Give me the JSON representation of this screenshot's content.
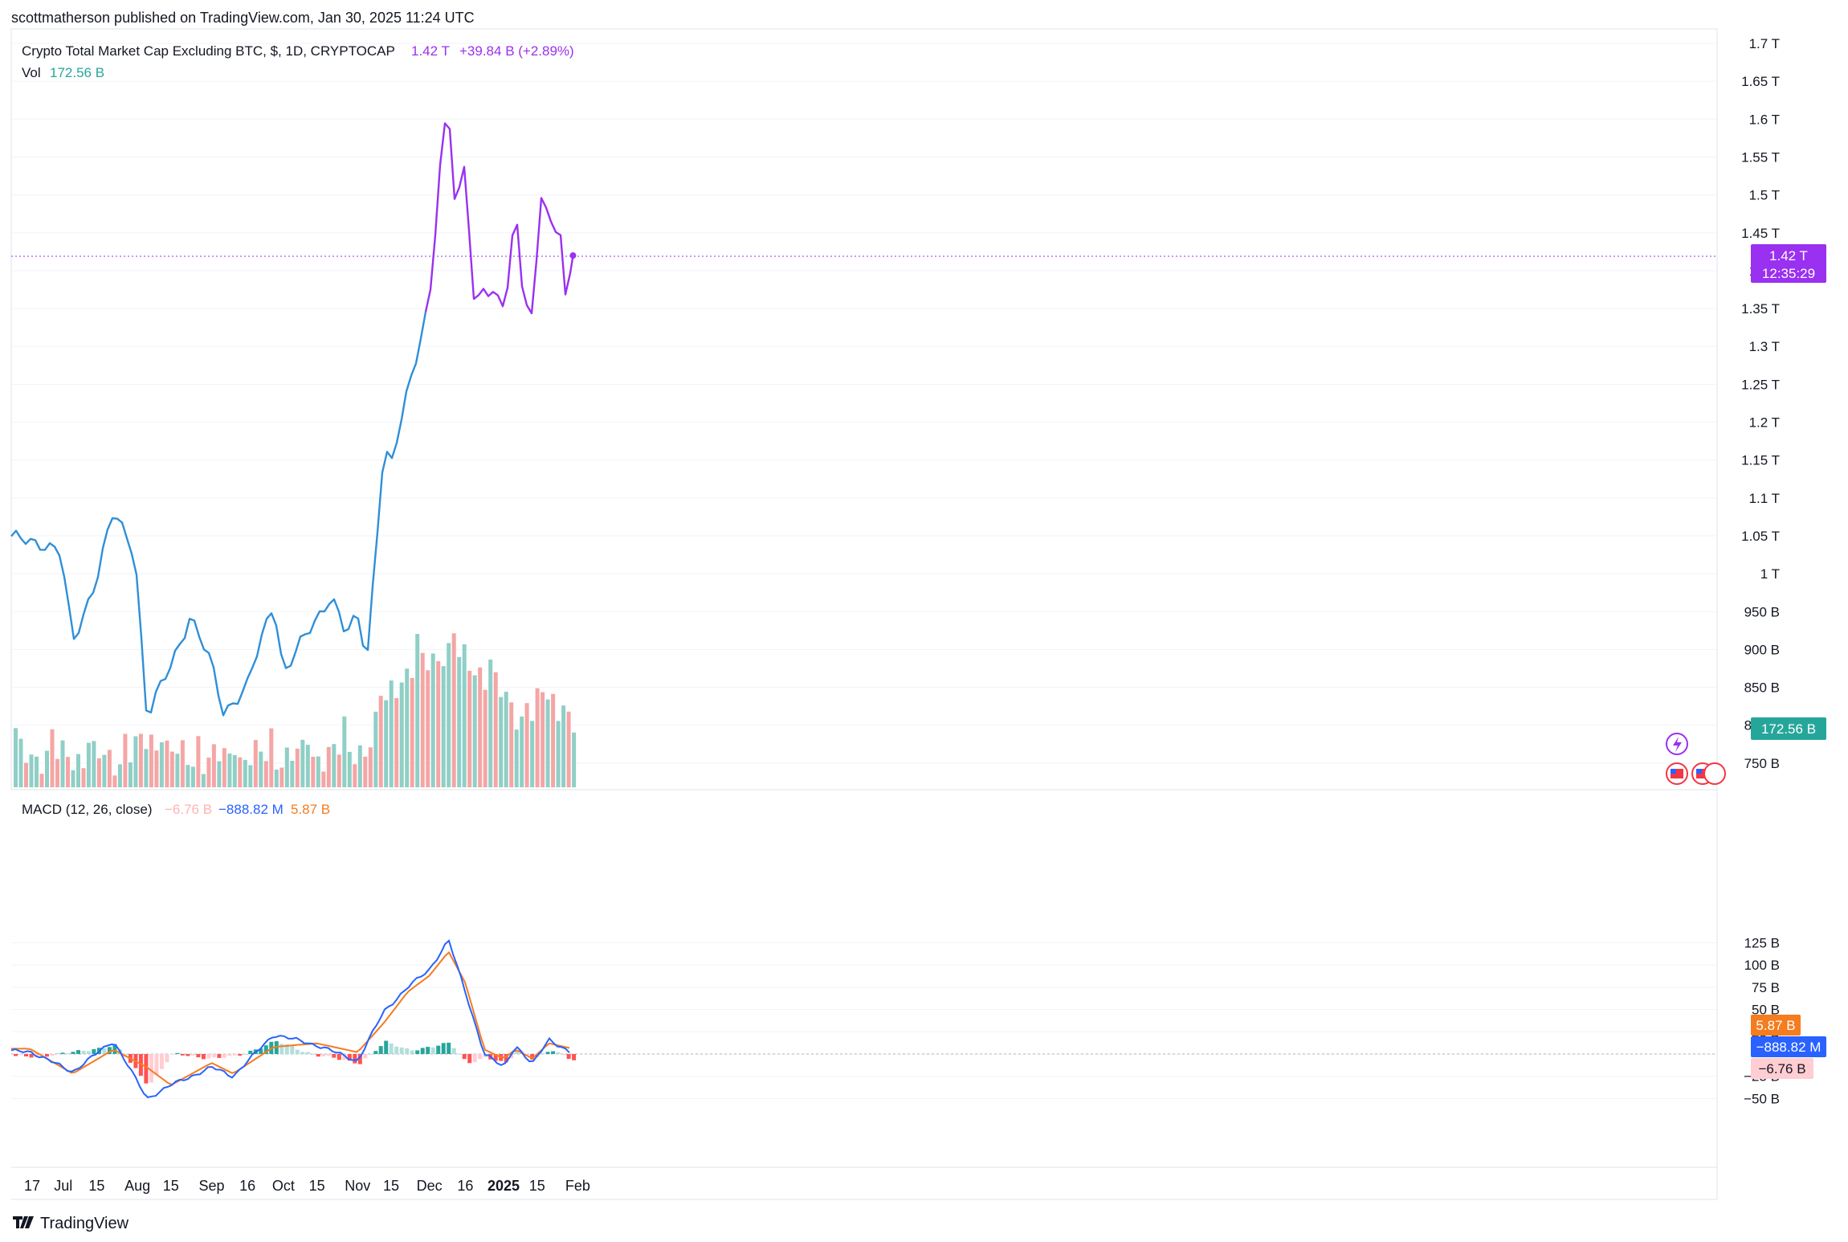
{
  "header": {
    "published_line": "scottmatherson published on TradingView.com, Jan 30, 2025 11:24 UTC"
  },
  "legend": {
    "symbol_desc": "Crypto Total Market Cap Excluding BTC, $, 1D, CRYPTOCAP",
    "last": "1.42 T",
    "change": "+39.84 B (+2.89%)",
    "vol_label": "Vol",
    "vol_value": "172.56 B",
    "macd_label": "MACD (12, 26, close)",
    "macd_hist": "−6.76 B",
    "macd_line": "−888.82 M",
    "macd_signal": "5.87 B"
  },
  "badges": {
    "price": "1.42 T",
    "countdown": "12:35:29",
    "volume": "172.56 B",
    "signal": "5.87 B",
    "macd": "−888.82 M",
    "hist": "−6.76 B"
  },
  "price_axis": [
    "1.7 T",
    "1.65 T",
    "1.6 T",
    "1.55 T",
    "1.5 T",
    "1.45 T",
    "1.4 T",
    "1.35 T",
    "1.3 T",
    "1.25 T",
    "1.2 T",
    "1.15 T",
    "1.1 T",
    "1.05 T",
    "1 T",
    "950 B",
    "900 B",
    "850 B",
    "800 B",
    "750 B"
  ],
  "macd_axis": [
    "125 B",
    "100 B",
    "75 B",
    "50 B",
    "25 B",
    "0",
    "−25 B",
    "−50 B"
  ],
  "date_axis": [
    "17",
    "Jul",
    "15",
    "Aug",
    "15",
    "Sep",
    "16",
    "Oct",
    "15",
    "Nov",
    "15",
    "Dec",
    "16",
    "2025",
    "15",
    "Feb"
  ],
  "footer": {
    "brand": "TradingView"
  },
  "colors": {
    "price_line_before": "#2f8fd8",
    "price_line_after": "#9a30f0",
    "vol_up": "#8fcfc6",
    "vol_down": "#f5a5a5",
    "macd_line": "#2962ff",
    "signal_line": "#f57c1f",
    "hist_up_strong": "#26a69a",
    "hist_up_weak": "#b2dfdb",
    "hist_down_strong": "#ff5252",
    "hist_down_weak": "#ffcdd2"
  },
  "chart_data": {
    "type": "line",
    "title": "Crypto Total Market Cap Excluding BTC, $, 1D, CRYPTOCAP",
    "x_range": [
      "2024-06-17",
      "2025-01-30"
    ],
    "price_series": {
      "name": "Crypto Total Market Cap Excluding BTC",
      "unit": "B USD",
      "x": [
        "2024-06-17",
        "2024-06-23",
        "2024-06-30",
        "2024-07-05",
        "2024-07-15",
        "2024-07-22",
        "2024-07-31",
        "2024-08-05",
        "2024-08-15",
        "2024-08-23",
        "2024-09-01",
        "2024-09-06",
        "2024-09-16",
        "2024-09-27",
        "2024-10-01",
        "2024-10-15",
        "2024-10-21",
        "2024-10-27",
        "2024-11-01",
        "2024-11-05",
        "2024-11-12",
        "2024-11-15",
        "2024-11-22",
        "2024-12-01",
        "2024-12-06",
        "2024-12-09",
        "2024-12-12",
        "2024-12-16",
        "2024-12-20",
        "2024-12-24",
        "2024-12-31",
        "2025-01-03",
        "2025-01-06",
        "2025-01-09",
        "2025-01-13",
        "2025-01-17",
        "2025-01-20",
        "2025-01-25",
        "2025-01-27",
        "2025-01-30"
      ],
      "y": [
        1045,
        1040,
        1025,
        910,
        995,
        1080,
        1030,
        808,
        880,
        945,
        878,
        818,
        852,
        965,
        870,
        940,
        975,
        920,
        940,
        890,
        1170,
        1140,
        1240,
        1365,
        1550,
        1610,
        1475,
        1545,
        1350,
        1380,
        1345,
        1390,
        1485,
        1385,
        1330,
        1510,
        1450,
        1460,
        1360,
        1420
      ]
    },
    "volume_series": {
      "name": "Vol",
      "last_value_B": 172.56
    },
    "macd": {
      "name": "MACD (12, 26, close)",
      "unit": "B",
      "x": [
        "2024-06-17",
        "2024-07-05",
        "2024-07-22",
        "2024-08-05",
        "2024-08-15",
        "2024-09-01",
        "2024-09-10",
        "2024-09-27",
        "2024-10-15",
        "2024-11-01",
        "2024-11-12",
        "2024-11-22",
        "2024-12-01",
        "2024-12-09",
        "2024-12-16",
        "2024-12-24",
        "2025-01-01",
        "2025-01-06",
        "2025-01-13",
        "2025-01-20",
        "2025-01-30"
      ],
      "macd_line": [
        3,
        -20,
        15,
        -50,
        -35,
        -15,
        -25,
        22,
        10,
        -8,
        48,
        75,
        95,
        128,
        70,
        0,
        -15,
        10,
        -12,
        17,
        -0.89
      ],
      "signal_line": [
        6,
        -22,
        5,
        -15,
        -35,
        -10,
        -22,
        8,
        12,
        2,
        35,
        70,
        88,
        115,
        80,
        5,
        -5,
        5,
        -5,
        12,
        5.87
      ],
      "histogram": [
        -3,
        2,
        10,
        -35,
        0,
        -5,
        -3,
        14,
        -2,
        -10,
        13,
        5,
        7,
        13,
        -10,
        -5,
        -10,
        5,
        -7,
        5,
        -6.76
      ],
      "ylim": [
        -55,
        130
      ]
    }
  }
}
